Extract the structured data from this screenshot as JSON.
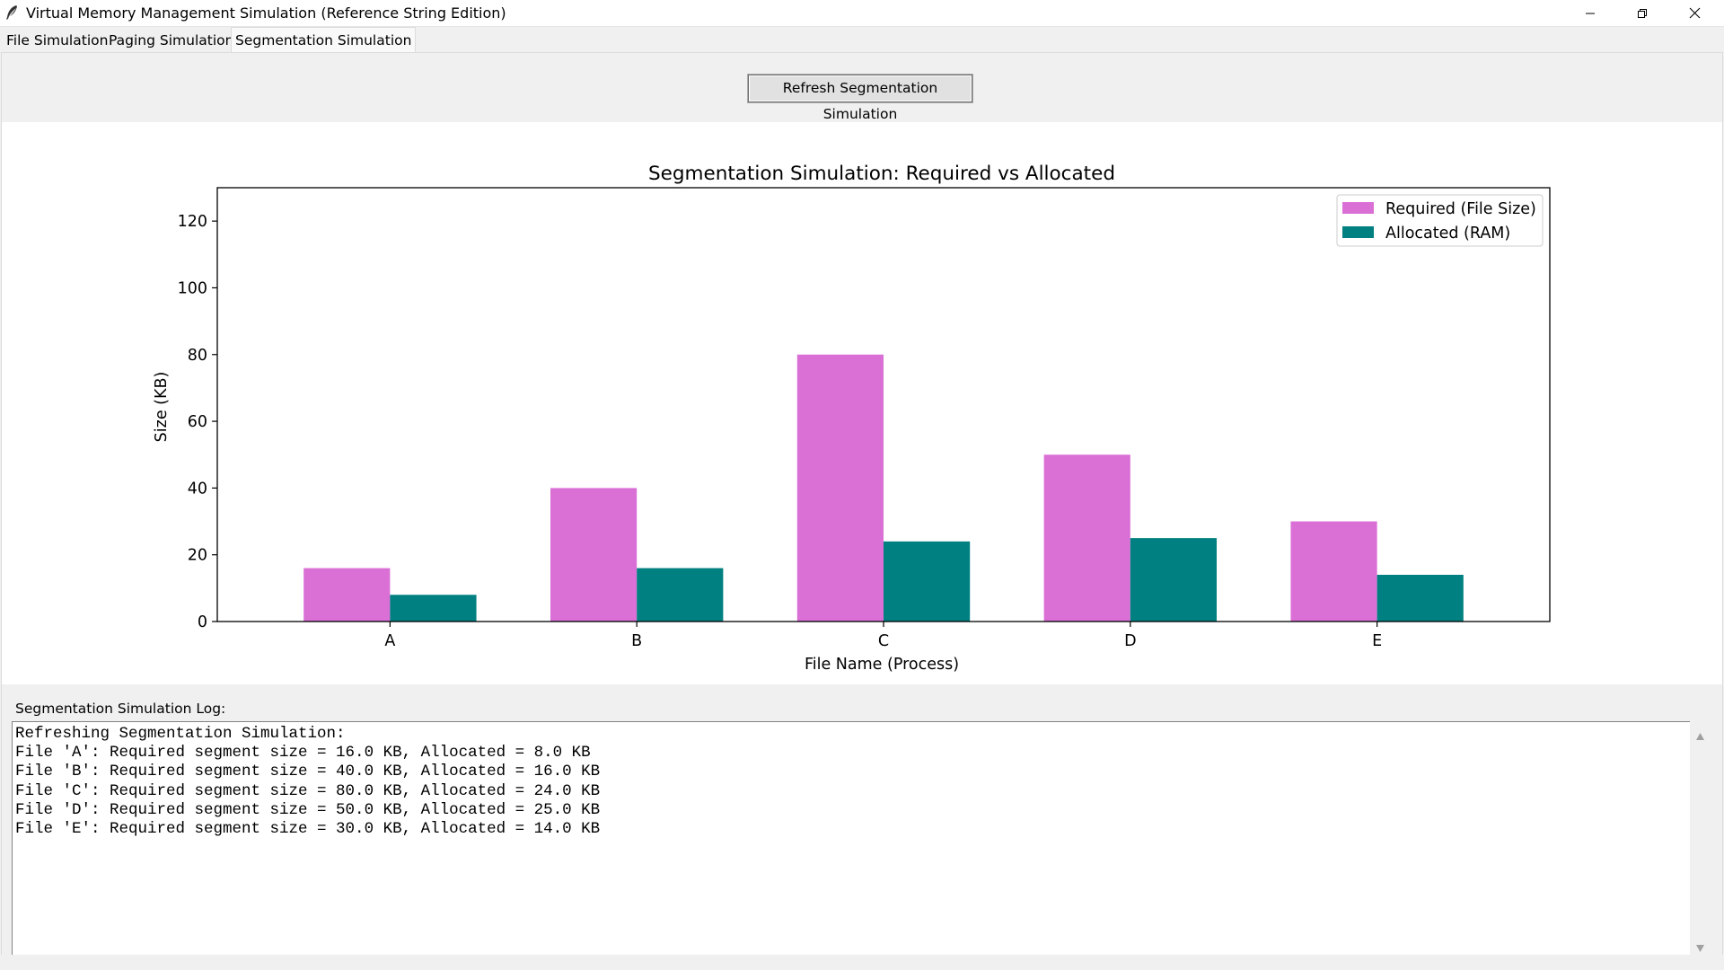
{
  "window": {
    "title": "Virtual Memory Management Simulation (Reference String Edition)"
  },
  "tabs": [
    {
      "label": "File Simulation",
      "active": false
    },
    {
      "label": "Paging Simulation",
      "active": false
    },
    {
      "label": "Segmentation Simulation",
      "active": true
    }
  ],
  "toolbar": {
    "refresh_label": "Refresh Segmentation Simulation"
  },
  "chart_data": {
    "type": "bar",
    "title": "Segmentation Simulation: Required vs Allocated",
    "xlabel": "File Name (Process)",
    "ylabel": "Size (KB)",
    "categories": [
      "A",
      "B",
      "C",
      "D",
      "E"
    ],
    "ylim": [
      0,
      130
    ],
    "yticks": [
      0,
      20,
      40,
      60,
      80,
      100,
      120
    ],
    "legend_position": "top-right",
    "grid": false,
    "series": [
      {
        "name": "Required (File Size)",
        "color": "#da70d6",
        "values": [
          16,
          40,
          80,
          50,
          30
        ]
      },
      {
        "name": "Allocated (RAM)",
        "color": "#008080",
        "values": [
          8,
          16,
          24,
          25,
          14
        ]
      }
    ]
  },
  "log": {
    "label": "Segmentation Simulation Log:",
    "lines": [
      "Refreshing Segmentation Simulation:",
      "File 'A': Required segment size = 16.0 KB, Allocated = 8.0 KB",
      "File 'B': Required segment size = 40.0 KB, Allocated = 16.0 KB",
      "File 'C': Required segment size = 80.0 KB, Allocated = 24.0 KB",
      "File 'D': Required segment size = 50.0 KB, Allocated = 25.0 KB",
      "File 'E': Required segment size = 30.0 KB, Allocated = 14.0 KB"
    ]
  }
}
